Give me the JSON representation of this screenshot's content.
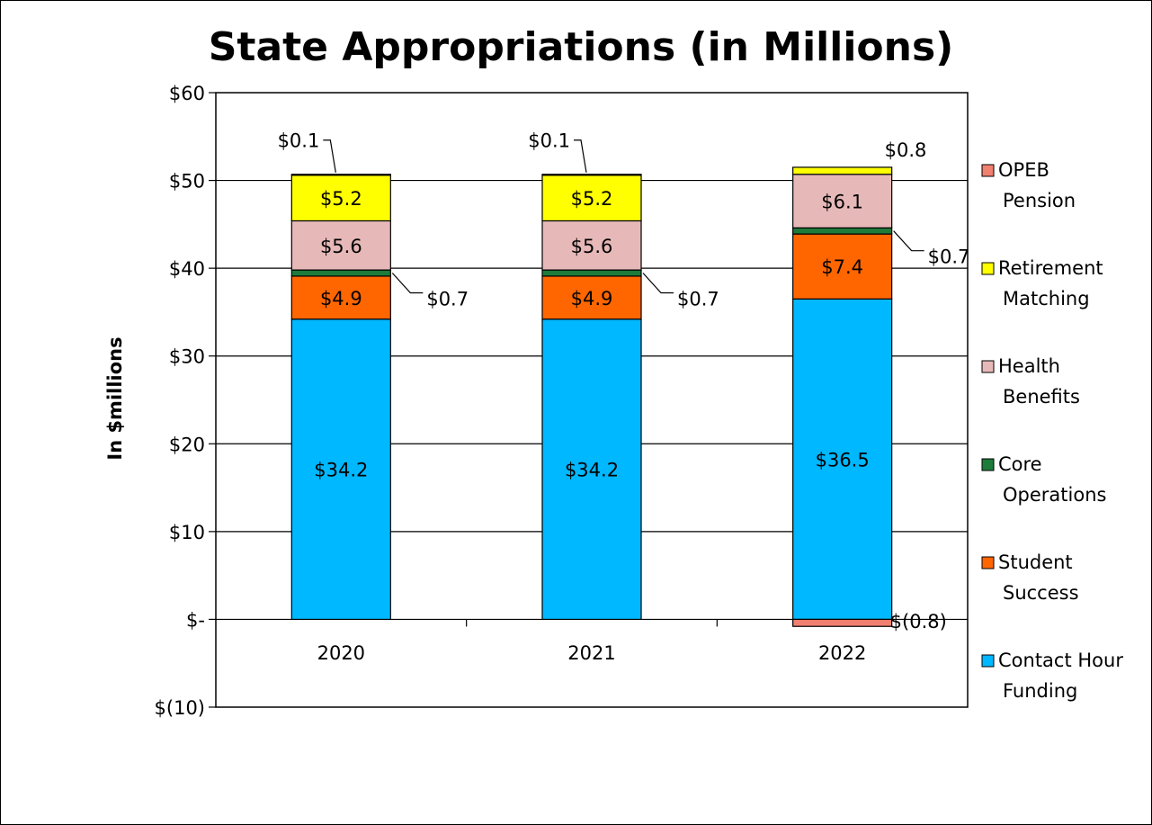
{
  "chart_data": {
    "type": "bar",
    "stacked": true,
    "title": "State Appropriations (in Millions)",
    "xlabel": "",
    "ylabel": "In $millions",
    "ylim": [
      -10,
      60
    ],
    "y_tick_values": [
      -10,
      0,
      10,
      20,
      30,
      40,
      50,
      60
    ],
    "y_tick_labels": [
      "$(10)",
      "$-",
      "$10",
      "$20",
      "$30",
      "$40",
      "$50",
      "$60"
    ],
    "grid": true,
    "legend_position": "right",
    "categories": [
      "2020",
      "2021",
      "2022"
    ],
    "series": [
      {
        "name": "Contact Hour Funding",
        "color": "#00B8FF",
        "values": [
          34.2,
          34.2,
          36.5
        ],
        "labels": [
          "$34.2",
          "$34.2",
          "$36.5"
        ]
      },
      {
        "name": "Student Success",
        "color": "#FF6600",
        "values": [
          4.9,
          4.9,
          7.4
        ],
        "labels": [
          "$4.9",
          "$4.9",
          "$7.4"
        ]
      },
      {
        "name": "Core Operations",
        "color": "#1E7B3A",
        "values": [
          0.7,
          0.7,
          0.7
        ],
        "labels": [
          "$0.7",
          "$0.7",
          "$0.7"
        ]
      },
      {
        "name": "Health Benefits",
        "color": "#E6B9B8",
        "values": [
          5.6,
          5.6,
          6.1
        ],
        "labels": [
          "$5.6",
          "$5.6",
          "$6.1"
        ]
      },
      {
        "name": "Retirement Matching",
        "color": "#FFFF00",
        "values": [
          5.2,
          5.2,
          0.8
        ],
        "labels": [
          "$5.2",
          "$5.2",
          "$0.8"
        ]
      },
      {
        "name": "OPEB Pension",
        "color": "#F08070",
        "values": [
          0.1,
          0.1,
          -0.8
        ],
        "labels": [
          "$0.1",
          "$0.1",
          "$(0.8)"
        ]
      }
    ],
    "legend_lines": [
      [
        "OPEB",
        "Pension"
      ],
      [
        "Retirement",
        "Matching"
      ],
      [
        "Health",
        "Benefits"
      ],
      [
        "Core",
        "Operations"
      ],
      [
        "Student",
        "Success"
      ],
      [
        "Contact Hour",
        "Funding"
      ]
    ]
  }
}
